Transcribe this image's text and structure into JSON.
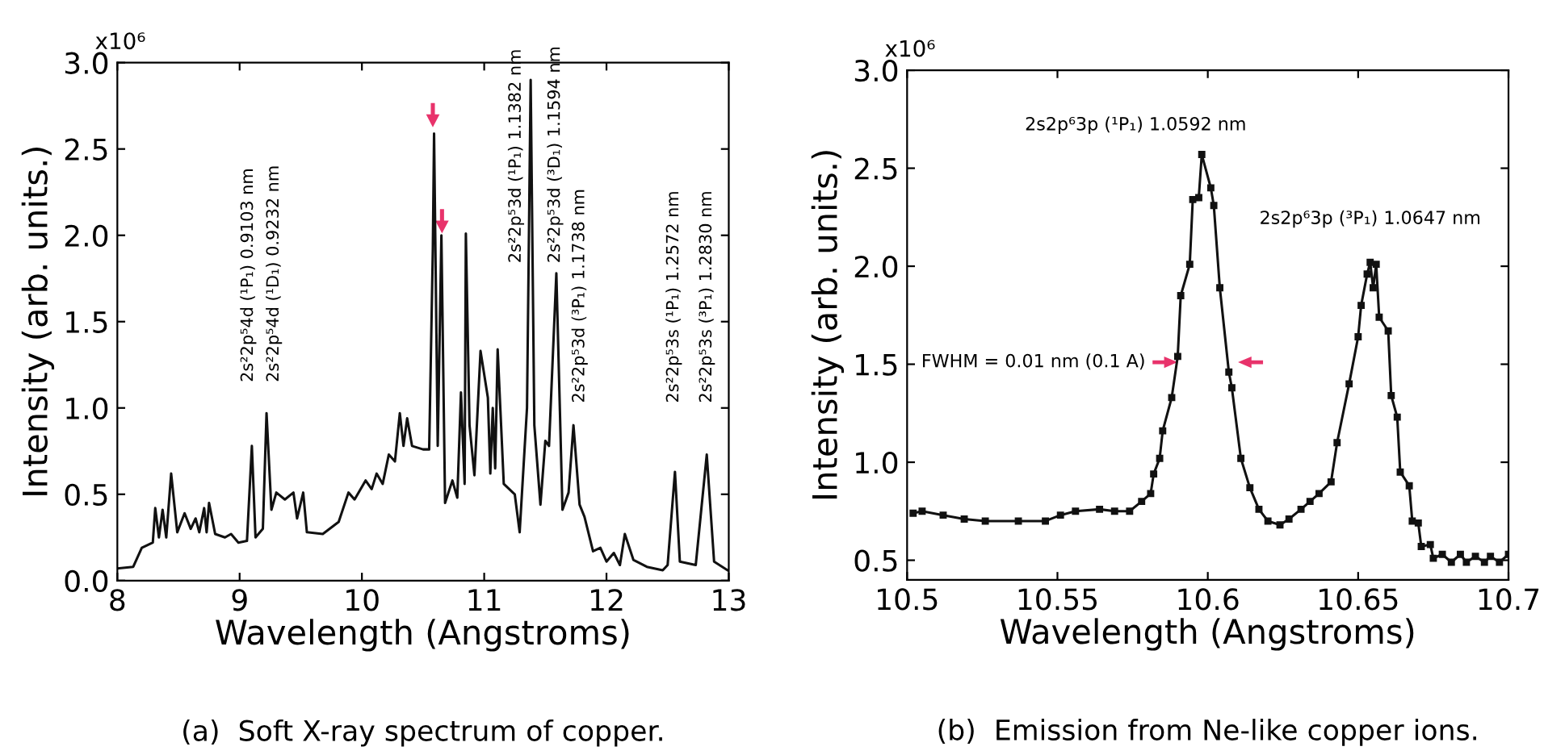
{
  "chart_data": [
    {
      "type": "line",
      "xlabel": "Wavelength (Angstroms)",
      "ylabel": "Intensity (arb. units.)",
      "xlim": [
        8,
        13
      ],
      "ylim": [
        0,
        3
      ],
      "xticks": [
        8,
        9,
        10,
        11,
        12,
        13
      ],
      "yticks": [
        {
          "value": 0,
          "label": "0.0"
        },
        0.5,
        {
          "value": 1,
          "label": "1.0"
        },
        1.5,
        {
          "value": 2,
          "label": "2.0"
        },
        2.5,
        {
          "value": 3,
          "label": "3.0"
        }
      ],
      "grid": false,
      "legend": false,
      "marker": "none",
      "line_style": "solid",
      "series": [
        {
          "color": "#111111",
          "x": [
            8.0,
            8.13,
            8.2,
            8.29,
            8.31,
            8.34,
            8.37,
            8.4,
            8.44,
            8.49,
            8.55,
            8.6,
            8.64,
            8.67,
            8.71,
            8.73,
            8.75,
            8.8,
            8.88,
            8.93,
            8.99,
            9.06,
            9.1,
            9.13,
            9.19,
            9.22,
            9.26,
            9.3,
            9.37,
            9.44,
            9.47,
            9.52,
            9.55,
            9.68,
            9.81,
            9.89,
            9.94,
            10.03,
            10.08,
            10.12,
            10.17,
            10.22,
            10.27,
            10.31,
            10.34,
            10.37,
            10.41,
            10.5,
            10.55,
            10.58,
            10.59,
            10.62,
            10.65,
            10.68,
            10.74,
            10.78,
            10.81,
            10.84,
            10.85,
            10.88,
            10.92,
            10.97,
            11.03,
            11.05,
            11.07,
            11.09,
            11.11,
            11.16,
            11.25,
            11.29,
            11.35,
            11.38,
            11.41,
            11.46,
            11.5,
            11.53,
            11.59,
            11.64,
            11.69,
            11.73,
            11.78,
            11.82,
            11.89,
            11.95,
            12.0,
            12.06,
            12.11,
            12.15,
            12.22,
            12.33,
            12.46,
            12.5,
            12.56,
            12.6,
            12.73,
            12.82,
            12.88,
            12.99
          ],
          "values": [
            0.07,
            0.08,
            0.19,
            0.22,
            0.42,
            0.25,
            0.41,
            0.25,
            0.62,
            0.28,
            0.39,
            0.3,
            0.36,
            0.28,
            0.42,
            0.28,
            0.45,
            0.27,
            0.25,
            0.27,
            0.22,
            0.23,
            0.78,
            0.25,
            0.3,
            0.97,
            0.41,
            0.51,
            0.47,
            0.51,
            0.36,
            0.51,
            0.28,
            0.27,
            0.34,
            0.51,
            0.47,
            0.58,
            0.53,
            0.62,
            0.56,
            0.73,
            0.69,
            0.97,
            0.78,
            0.94,
            0.78,
            0.76,
            0.76,
            1.92,
            2.59,
            0.78,
            2.0,
            0.45,
            0.58,
            0.48,
            1.09,
            0.56,
            2.01,
            0.9,
            0.61,
            1.33,
            1.06,
            0.62,
            1.0,
            0.65,
            1.34,
            0.56,
            0.5,
            0.28,
            1.0,
            2.9,
            0.9,
            0.44,
            0.81,
            0.78,
            1.78,
            0.41,
            0.51,
            0.9,
            0.44,
            0.37,
            0.17,
            0.19,
            0.11,
            0.16,
            0.09,
            0.27,
            0.12,
            0.08,
            0.06,
            0.09,
            0.63,
            0.11,
            0.09,
            0.73,
            0.11,
            0.06
          ]
        }
      ],
      "annotations": [
        "x10⁶",
        "(a)  Soft X-ray spectrum of copper.",
        "2s²2p⁵4d (¹P₁) 0.9103 nm",
        "2s²2p⁵4d (¹D₁) 0.9232 nm",
        "2s²2p⁵3d (¹P₁) 1.1382 nm",
        "2s²2p⁵3d (³D₁) 1.1594 nm",
        "2s²2p⁵3d (³P₁) 1.1738 nm",
        "2s²2p⁵3s (¹P₁) 1.2572 nm",
        "2s²2p⁵3s (³P₁) 1.2830 nm"
      ]
    },
    {
      "type": "line",
      "xlabel": "Wavelength (Angstroms)",
      "ylabel": "Intensity (arb. units.)",
      "xlim": [
        10.5,
        10.7
      ],
      "ylim": [
        0.4,
        3.0
      ],
      "xticks": [
        10.5,
        10.55,
        10.6,
        10.65,
        10.7
      ],
      "yticks": [
        0.5,
        {
          "value": 1,
          "label": "1.0"
        },
        1.5,
        {
          "value": 2,
          "label": "2.0"
        },
        2.5,
        {
          "value": 3,
          "label": "3.0"
        }
      ],
      "grid": false,
      "legend": false,
      "marker": "square",
      "line_style": "solid",
      "series": [
        {
          "color": "#111111",
          "x": [
            10.502,
            10.505,
            10.512,
            10.519,
            10.526,
            10.537,
            10.546,
            10.551,
            10.556,
            10.564,
            10.569,
            10.574,
            10.578,
            10.581,
            10.582,
            10.584,
            10.585,
            10.588,
            10.59,
            10.591,
            10.594,
            10.595,
            10.597,
            10.598,
            10.601,
            10.602,
            10.604,
            10.607,
            10.608,
            10.611,
            10.614,
            10.617,
            10.62,
            10.624,
            10.627,
            10.631,
            10.634,
            10.637,
            10.641,
            10.643,
            10.647,
            10.65,
            10.651,
            10.653,
            10.654,
            10.655,
            10.656,
            10.657,
            10.66,
            10.661,
            10.663,
            10.664,
            10.667,
            10.668,
            10.67,
            10.671,
            10.674,
            10.675,
            10.678,
            10.681,
            10.684,
            10.686,
            10.689,
            10.692,
            10.694,
            10.697,
            10.7
          ],
          "values": [
            0.74,
            0.75,
            0.73,
            0.71,
            0.7,
            0.7,
            0.7,
            0.73,
            0.75,
            0.76,
            0.75,
            0.75,
            0.8,
            0.84,
            0.94,
            1.02,
            1.16,
            1.33,
            1.54,
            1.85,
            2.01,
            2.34,
            2.35,
            2.57,
            2.4,
            2.31,
            1.89,
            1.46,
            1.38,
            1.02,
            0.87,
            0.76,
            0.7,
            0.68,
            0.71,
            0.76,
            0.8,
            0.84,
            0.9,
            1.1,
            1.4,
            1.64,
            1.8,
            1.96,
            2.02,
            1.89,
            2.01,
            1.74,
            1.67,
            1.34,
            1.23,
            0.95,
            0.88,
            0.7,
            0.69,
            0.57,
            0.58,
            0.51,
            0.53,
            0.49,
            0.53,
            0.49,
            0.52,
            0.49,
            0.52,
            0.49,
            0.53
          ]
        }
      ],
      "annotations": [
        "x10⁶",
        "(b)  Emission from Ne-like copper ions.",
        "2s2p⁶3p (¹P₁) 1.0592 nm",
        "2s2p⁶3p (³P₁) 1.0647 nm",
        "FWHM = 0.01 nm (0.1 A)"
      ]
    }
  ]
}
